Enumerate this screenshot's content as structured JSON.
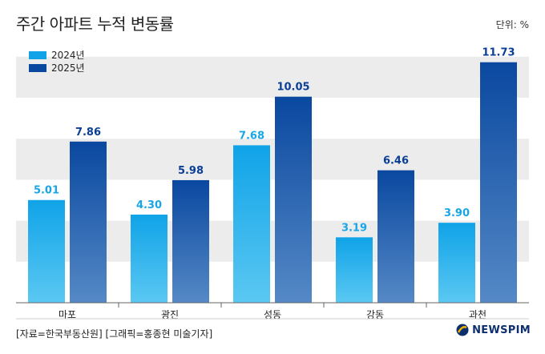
{
  "title": "주간 아파트 누적 변동률",
  "unit": "단위: %",
  "source": "[자료=한국부동산원] [그래픽=홍종현 미술기자]",
  "logo": "NEWSPIM",
  "colors": {
    "series_2024_top": "#10a3e8",
    "series_2024_bottom": "#5bc8f2",
    "series_2025_top": "#0a48a0",
    "series_2025_bottom": "#5589c6",
    "label_2024": "#18a6e6",
    "label_2025": "#0b3f96",
    "band": "#ececec"
  },
  "chart_data": {
    "type": "bar",
    "categories": [
      "마포",
      "광진",
      "성동",
      "강동",
      "과천"
    ],
    "series": [
      {
        "name": "2024년",
        "values": [
          5.01,
          4.3,
          7.68,
          3.19,
          3.9
        ]
      },
      {
        "name": "2025년",
        "values": [
          7.86,
          5.98,
          10.05,
          6.46,
          11.73
        ]
      }
    ],
    "data_labels": [
      [
        "5.01",
        "4.30",
        "7.68",
        "3.19",
        "3.90"
      ],
      [
        "7.86",
        "5.98",
        "10.05",
        "6.46",
        "11.73"
      ]
    ],
    "ylim": [
      0,
      12.5
    ],
    "grid": "alternating bands",
    "legend": "top-left"
  }
}
